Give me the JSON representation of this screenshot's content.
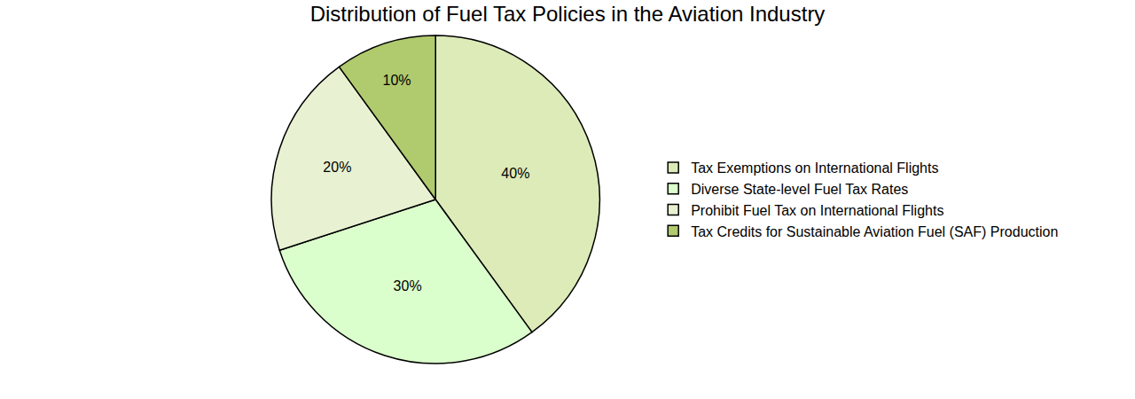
{
  "chart_data": {
    "type": "pie",
    "title": "Distribution of Fuel Tax Policies in the Aviation Industry",
    "categories": [
      "Tax Exemptions on International Flights",
      "Diverse State-level Fuel Tax Rates",
      "Prohibit Fuel Tax on International Flights",
      "Tax Credits for Sustainable Aviation Fuel (SAF) Production"
    ],
    "values": [
      40,
      30,
      20,
      10
    ],
    "value_labels": [
      "40%",
      "30%",
      "20%",
      "10%"
    ],
    "colors": [
      "#dcebb8",
      "#dbffcc",
      "#e8f2d2",
      "#b0ca6e"
    ],
    "data_labels": true,
    "legend": "right"
  }
}
